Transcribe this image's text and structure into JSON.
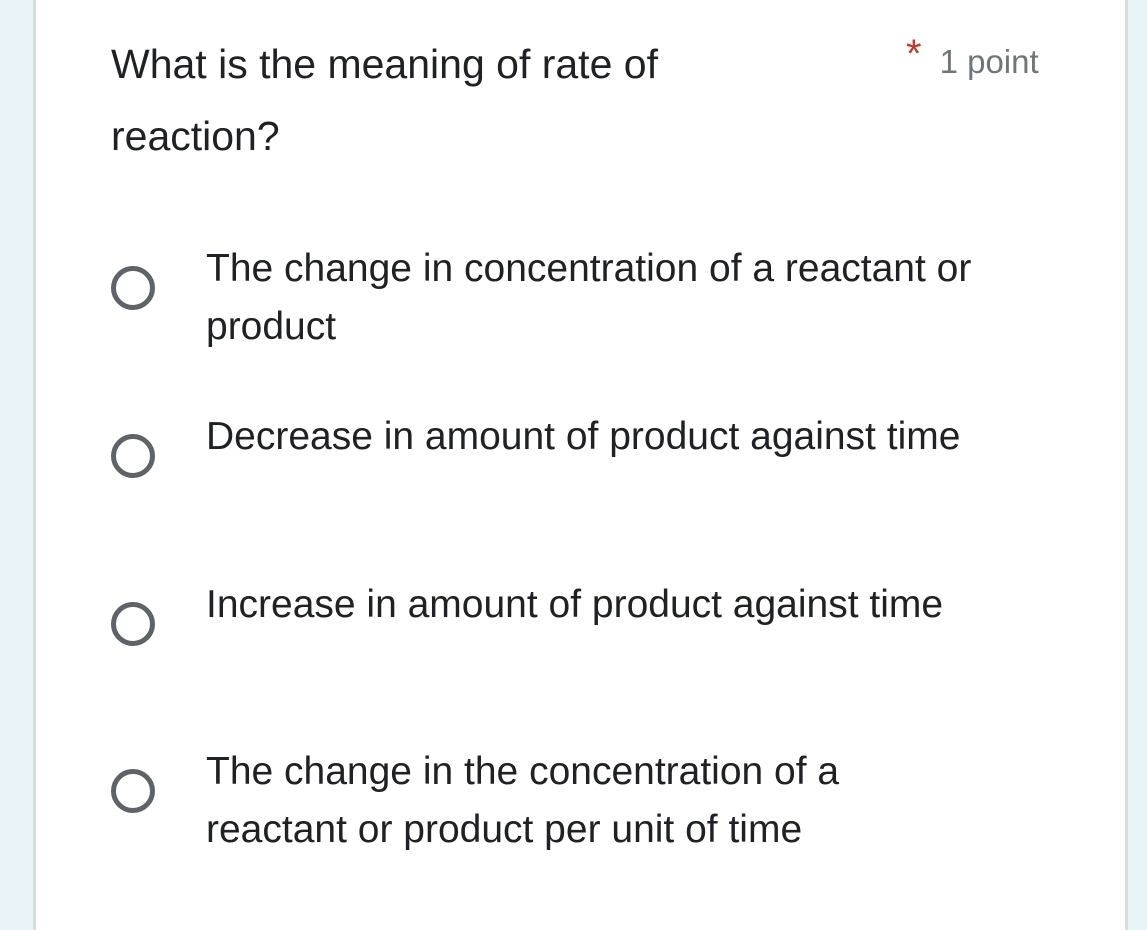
{
  "question": {
    "title": "What is the meaning of rate of reaction?",
    "required_mark": "*",
    "points": "1 point",
    "options": [
      {
        "label": "The change in concentration of a reactant or product"
      },
      {
        "label": "Decrease in amount of product against time"
      },
      {
        "label": "Increase in amount of product against time"
      },
      {
        "label": "The change in the concentration of a reactant or product per unit of time"
      }
    ]
  },
  "colors": {
    "required": "#c5392c",
    "radio": "#5f6368",
    "background": "#e8f4f8"
  }
}
